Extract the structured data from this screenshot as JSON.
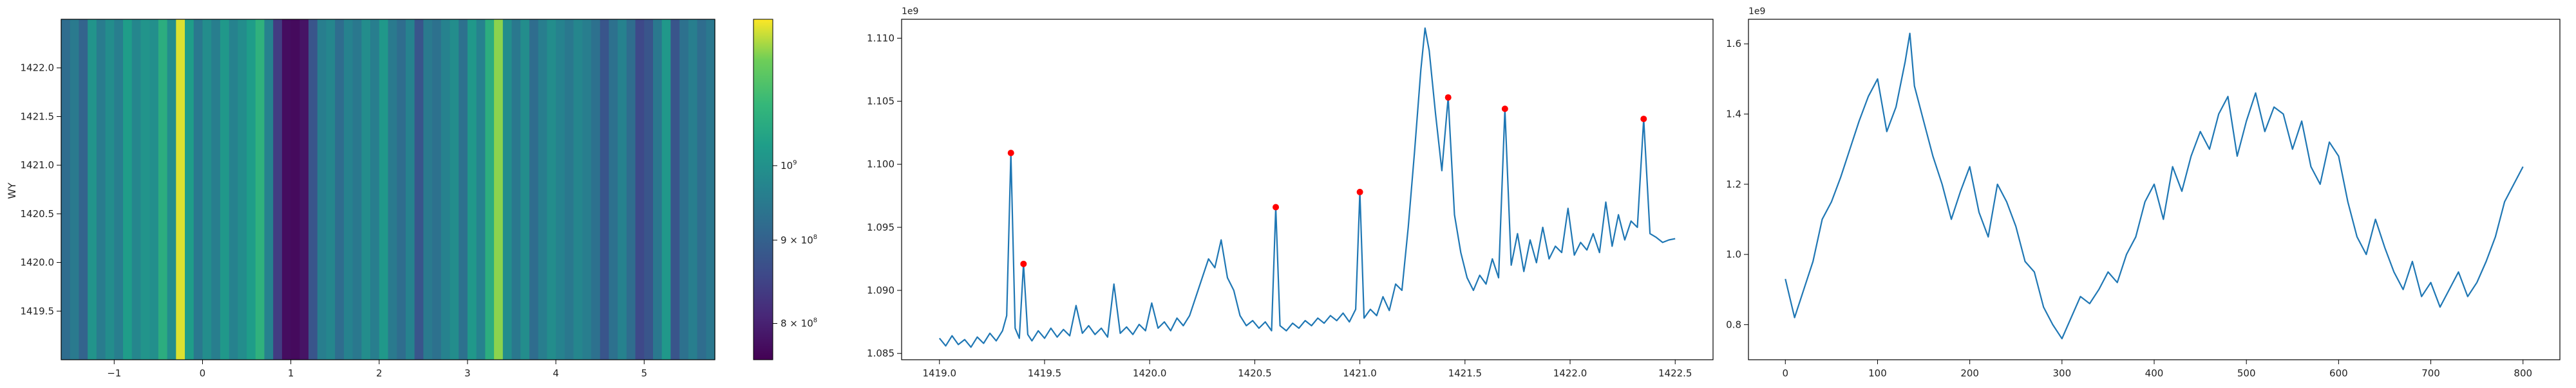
{
  "chart_data": [
    {
      "type": "heatmap",
      "title": "",
      "xlabel": "",
      "ylabel": "WY",
      "xlim": [
        -1.6,
        5.8
      ],
      "ylim": [
        1419.0,
        1422.5
      ],
      "xticks": [
        "−1",
        "0",
        "1",
        "2",
        "3",
        "4",
        "5"
      ],
      "yticks": [
        "1419.5",
        "1420.0",
        "1420.5",
        "1421.0",
        "1421.5",
        "1422.0"
      ],
      "colormap": "viridis",
      "color_scale": "log",
      "clim": [
        760000000,
        1230000000
      ],
      "colorbar_ticks": [
        {
          "value": 1000000000,
          "base": "10",
          "exp": "9",
          "coef": ""
        },
        {
          "value": 900000000,
          "base": "10",
          "exp": "8",
          "coef": "9 × "
        },
        {
          "value": 800000000,
          "base": "10",
          "exp": "8",
          "coef": "8 × "
        }
      ],
      "column_profile": [
        {
          "x": -1.6,
          "v": 0.4
        },
        {
          "x": -1.5,
          "v": 0.46
        },
        {
          "x": -1.4,
          "v": 0.36
        },
        {
          "x": -1.3,
          "v": 0.58
        },
        {
          "x": -1.2,
          "v": 0.47
        },
        {
          "x": -1.1,
          "v": 0.55
        },
        {
          "x": -1.0,
          "v": 0.48
        },
        {
          "x": -0.9,
          "v": 0.62
        },
        {
          "x": -0.8,
          "v": 0.52
        },
        {
          "x": -0.7,
          "v": 0.58
        },
        {
          "x": -0.6,
          "v": 0.56
        },
        {
          "x": -0.5,
          "v": 0.7
        },
        {
          "x": -0.4,
          "v": 0.55
        },
        {
          "x": -0.3,
          "v": 0.97
        },
        {
          "x": -0.2,
          "v": 0.62
        },
        {
          "x": -0.1,
          "v": 0.45
        },
        {
          "x": 0.0,
          "v": 0.55
        },
        {
          "x": 0.1,
          "v": 0.48
        },
        {
          "x": 0.2,
          "v": 0.6
        },
        {
          "x": 0.3,
          "v": 0.5
        },
        {
          "x": 0.4,
          "v": 0.55
        },
        {
          "x": 0.5,
          "v": 0.62
        },
        {
          "x": 0.6,
          "v": 0.72
        },
        {
          "x": 0.7,
          "v": 0.5
        },
        {
          "x": 0.8,
          "v": 0.2
        },
        {
          "x": 0.9,
          "v": 0.04
        },
        {
          "x": 1.0,
          "v": 0.03
        },
        {
          "x": 1.1,
          "v": 0.06
        },
        {
          "x": 1.2,
          "v": 0.3
        },
        {
          "x": 1.3,
          "v": 0.48
        },
        {
          "x": 1.4,
          "v": 0.52
        },
        {
          "x": 1.5,
          "v": 0.4
        },
        {
          "x": 1.6,
          "v": 0.5
        },
        {
          "x": 1.7,
          "v": 0.45
        },
        {
          "x": 1.8,
          "v": 0.55
        },
        {
          "x": 1.9,
          "v": 0.48
        },
        {
          "x": 2.0,
          "v": 0.6
        },
        {
          "x": 2.1,
          "v": 0.46
        },
        {
          "x": 2.2,
          "v": 0.4
        },
        {
          "x": 2.3,
          "v": 0.5
        },
        {
          "x": 2.4,
          "v": 0.3
        },
        {
          "x": 2.5,
          "v": 0.46
        },
        {
          "x": 2.6,
          "v": 0.42
        },
        {
          "x": 2.7,
          "v": 0.5
        },
        {
          "x": 2.8,
          "v": 0.55
        },
        {
          "x": 2.9,
          "v": 0.42
        },
        {
          "x": 3.0,
          "v": 0.6
        },
        {
          "x": 3.1,
          "v": 0.5
        },
        {
          "x": 3.2,
          "v": 0.7
        },
        {
          "x": 3.3,
          "v": 0.9
        },
        {
          "x": 3.4,
          "v": 0.55
        },
        {
          "x": 3.5,
          "v": 0.45
        },
        {
          "x": 3.6,
          "v": 0.55
        },
        {
          "x": 3.7,
          "v": 0.4
        },
        {
          "x": 3.8,
          "v": 0.48
        },
        {
          "x": 3.9,
          "v": 0.55
        },
        {
          "x": 4.0,
          "v": 0.5
        },
        {
          "x": 4.1,
          "v": 0.45
        },
        {
          "x": 4.2,
          "v": 0.52
        },
        {
          "x": 4.3,
          "v": 0.48
        },
        {
          "x": 4.4,
          "v": 0.42
        },
        {
          "x": 4.5,
          "v": 0.3
        },
        {
          "x": 4.6,
          "v": 0.42
        },
        {
          "x": 4.7,
          "v": 0.5
        },
        {
          "x": 4.8,
          "v": 0.4
        },
        {
          "x": 4.9,
          "v": 0.25
        },
        {
          "x": 5.0,
          "v": 0.3
        },
        {
          "x": 5.1,
          "v": 0.45
        },
        {
          "x": 5.2,
          "v": 0.6
        },
        {
          "x": 5.3,
          "v": 0.3
        },
        {
          "x": 5.4,
          "v": 0.42
        },
        {
          "x": 5.5,
          "v": 0.48
        },
        {
          "x": 5.6,
          "v": 0.4
        },
        {
          "x": 5.7,
          "v": 0.45
        }
      ]
    },
    {
      "type": "line",
      "title": "",
      "xlabel": "",
      "ylabel": "",
      "offset_label": "1e9",
      "xlim": [
        1418.82,
        1422.68
      ],
      "ylim": [
        1.0845,
        1.1115
      ],
      "xticks": [
        "1419.0",
        "1419.5",
        "1420.0",
        "1420.5",
        "1421.0",
        "1421.5",
        "1422.0",
        "1422.5"
      ],
      "yticks": [
        "1.085",
        "1.090",
        "1.095",
        "1.100",
        "1.105",
        "1.110"
      ],
      "line_color": "#1f77b4",
      "marker_color": "#ff0000",
      "series": [
        {
          "x": [
            1419.0,
            1419.03,
            1419.06,
            1419.09,
            1419.12,
            1419.15,
            1419.18,
            1419.21,
            1419.24,
            1419.27,
            1419.3,
            1419.32,
            1419.34,
            1419.36,
            1419.38,
            1419.4,
            1419.42,
            1419.44,
            1419.47,
            1419.5,
            1419.53,
            1419.56,
            1419.59,
            1419.62,
            1419.65,
            1419.68,
            1419.71,
            1419.74,
            1419.77,
            1419.8,
            1419.83,
            1419.86,
            1419.89,
            1419.92,
            1419.95,
            1419.98,
            1420.01,
            1420.04,
            1420.07,
            1420.1,
            1420.13,
            1420.16,
            1420.19,
            1420.22,
            1420.25,
            1420.28,
            1420.31,
            1420.34,
            1420.37,
            1420.4,
            1420.43,
            1420.46,
            1420.49,
            1420.52,
            1420.55,
            1420.58,
            1420.6,
            1420.62,
            1420.65,
            1420.68,
            1420.71,
            1420.74,
            1420.77,
            1420.8,
            1420.83,
            1420.86,
            1420.89,
            1420.92,
            1420.95,
            1420.98,
            1421.0,
            1421.02,
            1421.05,
            1421.08,
            1421.11,
            1421.14,
            1421.17,
            1421.2,
            1421.23,
            1421.26,
            1421.29,
            1421.31,
            1421.33,
            1421.36,
            1421.39,
            1421.42,
            1421.45,
            1421.48,
            1421.51,
            1421.54,
            1421.57,
            1421.6,
            1421.63,
            1421.66,
            1421.69,
            1421.72,
            1421.75,
            1421.78,
            1421.81,
            1421.84,
            1421.87,
            1421.9,
            1421.93,
            1421.96,
            1421.99,
            1422.02,
            1422.05,
            1422.08,
            1422.11,
            1422.14,
            1422.17,
            1422.2,
            1422.23,
            1422.26,
            1422.29,
            1422.32,
            1422.35,
            1422.38,
            1422.41,
            1422.44,
            1422.47,
            1422.5
          ],
          "y": [
            1.0862,
            1.0856,
            1.0864,
            1.0857,
            1.0861,
            1.0855,
            1.0863,
            1.0858,
            1.0866,
            1.086,
            1.0868,
            1.088,
            1.1009,
            1.087,
            1.0862,
            1.0921,
            1.0865,
            1.086,
            1.0868,
            1.0862,
            1.087,
            1.0863,
            1.0869,
            1.0864,
            1.0888,
            1.0866,
            1.0872,
            1.0865,
            1.087,
            1.0863,
            1.0905,
            1.0866,
            1.0871,
            1.0865,
            1.0873,
            1.0868,
            1.089,
            1.087,
            1.0875,
            1.0868,
            1.0878,
            1.0872,
            1.088,
            1.0895,
            1.091,
            1.0925,
            1.0918,
            1.094,
            1.091,
            1.09,
            1.088,
            1.0872,
            1.0876,
            1.087,
            1.0875,
            1.0868,
            1.0966,
            1.0872,
            1.0868,
            1.0874,
            1.087,
            1.0876,
            1.0872,
            1.0878,
            1.0874,
            1.088,
            1.0876,
            1.0882,
            1.0875,
            1.0885,
            1.0978,
            1.0878,
            1.0885,
            1.088,
            1.0895,
            1.0884,
            1.0905,
            1.09,
            1.095,
            1.101,
            1.1075,
            1.1108,
            1.109,
            1.104,
            1.0995,
            1.1053,
            1.096,
            1.093,
            1.091,
            1.09,
            1.0912,
            1.0905,
            1.0925,
            1.091,
            1.1044,
            1.092,
            1.0945,
            1.0915,
            1.094,
            1.0922,
            1.095,
            1.0925,
            1.0935,
            1.093,
            1.0965,
            1.0928,
            1.0938,
            1.0932,
            1.0945,
            1.093,
            1.097,
            1.0935,
            1.096,
            1.094,
            1.0955,
            1.095,
            1.1036,
            1.0945,
            1.0942,
            1.0938,
            1.094,
            1.0941
          ]
        }
      ],
      "peaks": [
        {
          "x": 1419.34,
          "y": 1.1009
        },
        {
          "x": 1419.4,
          "y": 1.0921
        },
        {
          "x": 1420.6,
          "y": 1.0966
        },
        {
          "x": 1421.0,
          "y": 1.0978
        },
        {
          "x": 1421.42,
          "y": 1.1053
        },
        {
          "x": 1421.69,
          "y": 1.1044
        },
        {
          "x": 1422.35,
          "y": 1.1036
        }
      ]
    },
    {
      "type": "line",
      "title": "",
      "xlabel": "",
      "ylabel": "",
      "offset_label": "1e9",
      "xlim": [
        -40,
        840
      ],
      "ylim": [
        0.7,
        1.67
      ],
      "xticks": [
        "0",
        "100",
        "200",
        "300",
        "400",
        "500",
        "600",
        "700",
        "800"
      ],
      "yticks": [
        "0.8",
        "1.0",
        "1.2",
        "1.4",
        "1.6"
      ],
      "line_color": "#1f77b4",
      "series": [
        {
          "x": [
            0,
            10,
            20,
            30,
            40,
            50,
            60,
            70,
            80,
            90,
            100,
            110,
            120,
            130,
            135,
            140,
            150,
            160,
            170,
            180,
            190,
            200,
            210,
            220,
            230,
            240,
            250,
            260,
            270,
            280,
            290,
            300,
            310,
            320,
            330,
            340,
            350,
            360,
            370,
            380,
            390,
            400,
            410,
            420,
            430,
            440,
            450,
            460,
            470,
            480,
            490,
            500,
            510,
            520,
            530,
            540,
            550,
            560,
            570,
            580,
            590,
            600,
            610,
            620,
            630,
            640,
            650,
            660,
            670,
            680,
            690,
            700,
            710,
            720,
            730,
            740,
            750,
            760,
            770,
            780,
            790,
            800
          ],
          "y": [
            0.93,
            0.82,
            0.9,
            0.98,
            1.1,
            1.15,
            1.22,
            1.3,
            1.38,
            1.45,
            1.5,
            1.35,
            1.42,
            1.55,
            1.63,
            1.48,
            1.38,
            1.28,
            1.2,
            1.1,
            1.18,
            1.25,
            1.12,
            1.05,
            1.2,
            1.15,
            1.08,
            0.98,
            0.95,
            0.85,
            0.8,
            0.76,
            0.82,
            0.88,
            0.86,
            0.9,
            0.95,
            0.92,
            1.0,
            1.05,
            1.15,
            1.2,
            1.1,
            1.25,
            1.18,
            1.28,
            1.35,
            1.3,
            1.4,
            1.45,
            1.28,
            1.38,
            1.46,
            1.35,
            1.42,
            1.4,
            1.3,
            1.38,
            1.25,
            1.2,
            1.32,
            1.28,
            1.15,
            1.05,
            1.0,
            1.1,
            1.02,
            0.95,
            0.9,
            0.98,
            0.88,
            0.92,
            0.85,
            0.9,
            0.95,
            0.88,
            0.92,
            0.98,
            1.05,
            1.15,
            1.2,
            1.25
          ]
        }
      ]
    }
  ]
}
